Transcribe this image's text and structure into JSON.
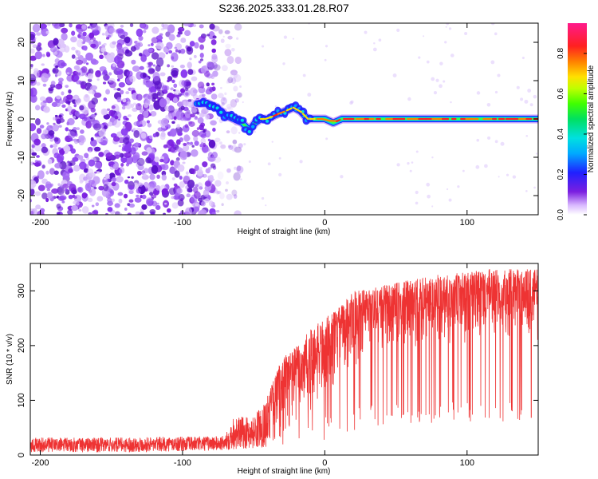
{
  "title": "S236.2025.333.01.28.R07",
  "chart_data": [
    {
      "type": "heatmap",
      "name": "spectrogram",
      "xlabel": "Height of straight line (km)",
      "ylabel": "Frequency (Hz)",
      "xlim": [
        -207,
        150
      ],
      "ylim": [
        -25,
        25
      ],
      "xticks": [
        -200,
        -100,
        0,
        100
      ],
      "yticks": [
        -20,
        -10,
        0,
        10,
        20
      ],
      "noise_region_x": [
        -207,
        -77
      ],
      "signal_ridge": [
        [
          -88,
          4
        ],
        [
          -82,
          4
        ],
        [
          -76,
          3
        ],
        [
          -70,
          1
        ],
        [
          -64,
          0
        ],
        [
          -58,
          -1
        ],
        [
          -53,
          -3
        ],
        [
          -49,
          -1
        ],
        [
          -45,
          0
        ],
        [
          -40,
          0
        ],
        [
          -35,
          1
        ],
        [
          -28,
          2
        ],
        [
          -22,
          3
        ],
        [
          -17,
          2
        ],
        [
          -12,
          0
        ],
        [
          -6,
          0
        ],
        [
          0,
          0
        ],
        [
          6,
          -1
        ],
        [
          12,
          0
        ],
        [
          20,
          0
        ],
        [
          40,
          0
        ],
        [
          80,
          0
        ],
        [
          150,
          0
        ]
      ],
      "colorbar": {
        "label": "Normalized spectral amplitude",
        "ticks": [
          0.0,
          0.2,
          0.4,
          0.6,
          0.8
        ],
        "tick_labels": [
          "0.0",
          "0.2",
          "0.4",
          "0.6",
          "0.8"
        ],
        "range": [
          0,
          0.95
        ]
      }
    },
    {
      "type": "line",
      "name": "snr",
      "xlabel": "Height of straight line (km)",
      "ylabel": "SNR (10 * v/v)",
      "xlim": [
        -207,
        150
      ],
      "ylim": [
        0,
        350
      ],
      "xticks": [
        -200,
        -100,
        0,
        100
      ],
      "yticks": [
        0,
        100,
        200,
        300
      ],
      "series": [
        {
          "name": "SNR",
          "color": "#ee3333",
          "envelope": [
            [
              -207,
              5,
              32
            ],
            [
              -150,
              5,
              32
            ],
            [
              -70,
              8,
              35
            ],
            [
              -65,
              10,
              70
            ],
            [
              -50,
              12,
              70
            ],
            [
              -40,
              15,
              110
            ],
            [
              -30,
              20,
              180
            ],
            [
              -20,
              30,
              200
            ],
            [
              -10,
              50,
              230
            ],
            [
              0,
              80,
              250
            ],
            [
              10,
              120,
              270
            ],
            [
              20,
              150,
              300
            ],
            [
              40,
              170,
              310
            ],
            [
              60,
              180,
              320
            ],
            [
              80,
              190,
              330
            ],
            [
              100,
              190,
              335
            ],
            [
              120,
              200,
              340
            ],
            [
              150,
              200,
              340
            ]
          ]
        }
      ]
    }
  ],
  "colors": {
    "noise": "#7b1fe0",
    "snr_line": "#ee3333"
  }
}
